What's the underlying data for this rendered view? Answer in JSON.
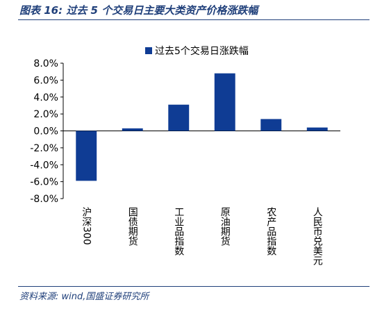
{
  "figure": {
    "title": "图表 16:  过去 5 个交易日主要大类资产价格涨跌幅",
    "source": "资料来源:  wind,国盛证券研究所"
  },
  "colors": {
    "bar": "#0f3c94",
    "accent": "#1f3f7a"
  },
  "chart_data": {
    "type": "bar",
    "categories": [
      "沪深300",
      "国债期货",
      "工业品指数",
      "原油期货",
      "农产品指数",
      "人民币兑美元"
    ],
    "series": [
      {
        "name": "过去5个交易日涨跌幅",
        "values": [
          -5.9,
          0.3,
          3.1,
          6.8,
          1.4,
          0.4
        ]
      }
    ],
    "ylim": [
      -8.0,
      8.0
    ],
    "yticks": [
      "8.0%",
      "6.0%",
      "4.0%",
      "2.0%",
      "0.0%",
      "-2.0%",
      "-4.0%",
      "-6.0%",
      "-8.0%"
    ],
    "ytick_values": [
      8,
      6,
      4,
      2,
      0,
      -2,
      -4,
      -6,
      -8
    ],
    "legend_position": "top",
    "grid": false,
    "xlabel": "",
    "ylabel": ""
  }
}
